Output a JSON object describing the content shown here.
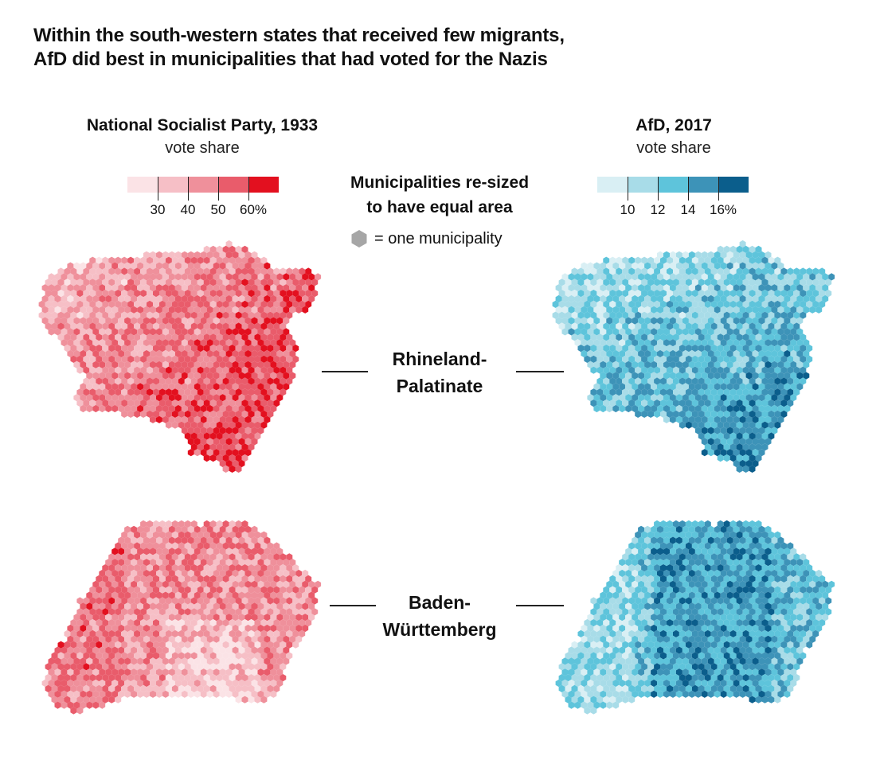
{
  "title": {
    "line1": "Within the south-western states that received few migrants,",
    "line2": "AfD did best in municipalities that had voted for the Nazis"
  },
  "legend_left": {
    "title": "National Socialist Party, 1933",
    "subtitle": "vote share",
    "ticks": [
      "30",
      "40",
      "50",
      "60%"
    ],
    "colors": [
      "#fbe3e6",
      "#f6bfc6",
      "#ef909b",
      "#e95c6b",
      "#e3101f"
    ]
  },
  "legend_right": {
    "title": "AfD, 2017",
    "subtitle": "vote share",
    "ticks": [
      "10",
      "12",
      "14",
      "16%"
    ],
    "colors": [
      "#d9eff4",
      "#a8dce8",
      "#5ec4db",
      "#3d93b8",
      "#0b5e8c"
    ]
  },
  "center_note": {
    "line1": "Municipalities re-sized",
    "line2": "to have equal area",
    "hex_key_label": "= one municipality",
    "hex_key_color": "#a6a6a6"
  },
  "states": [
    {
      "label_line1": "Rhineland-",
      "label_line2": "Palatinate"
    },
    {
      "label_line1": "Baden-",
      "label_line2": "Württemberg"
    }
  ]
}
